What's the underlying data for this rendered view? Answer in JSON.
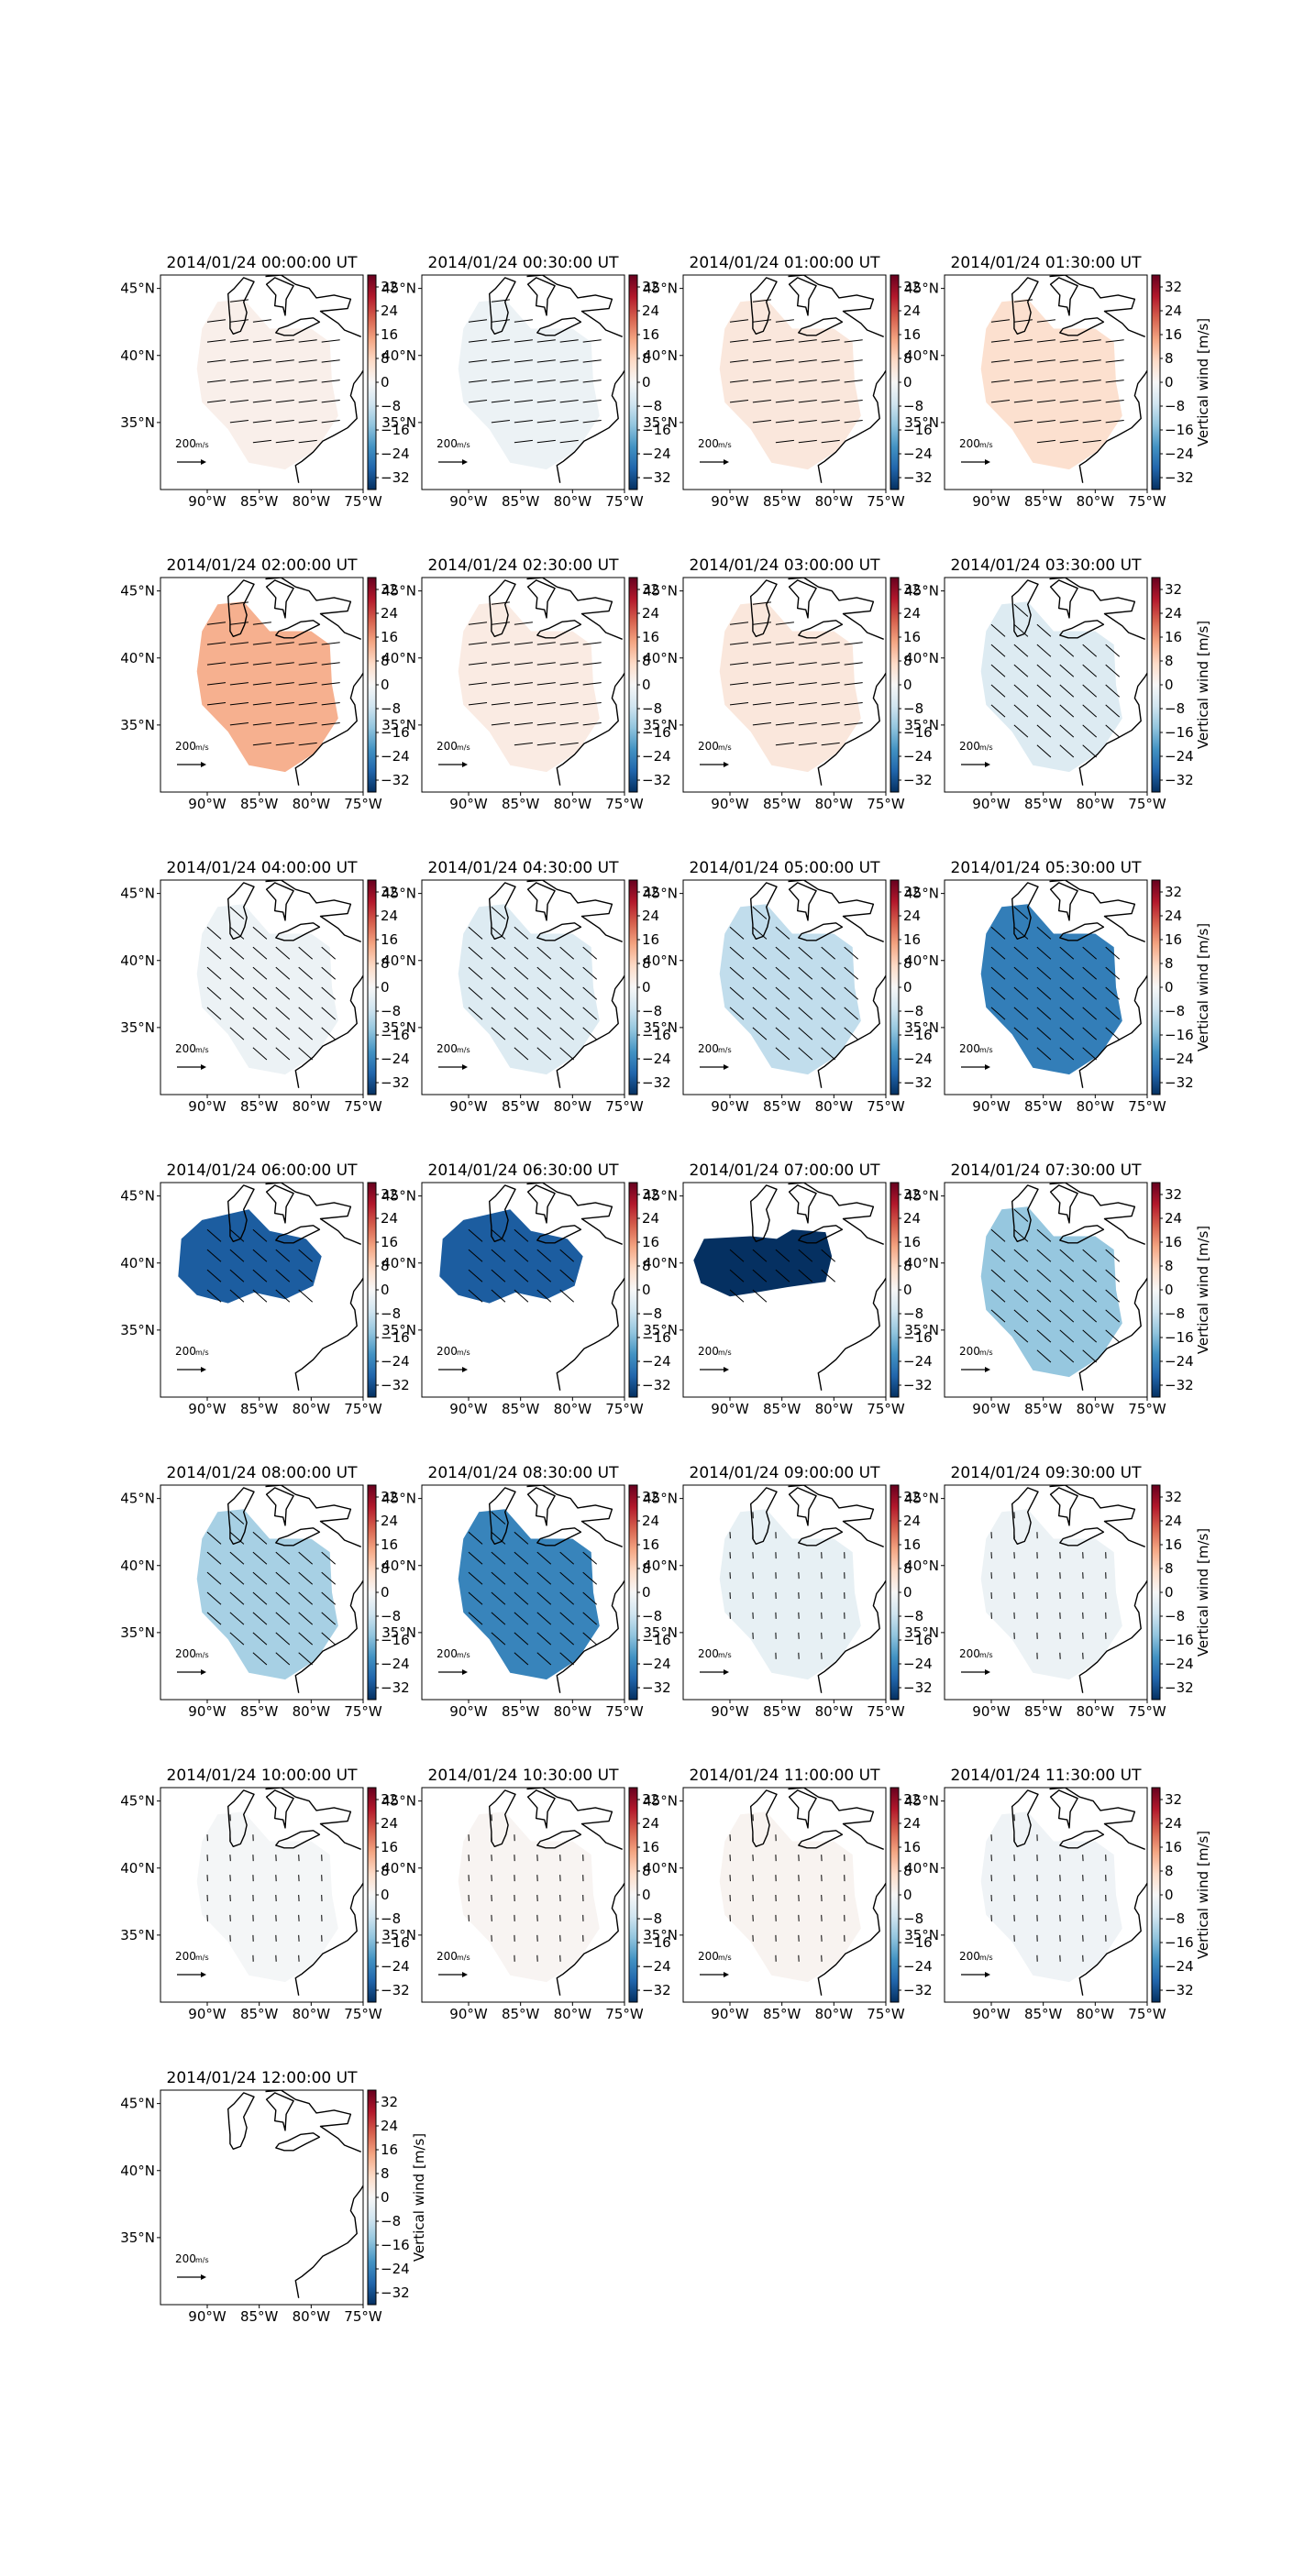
{
  "figure": {
    "colorbar": {
      "label": "Vertical wind [m/s]",
      "ticks": [
        "32",
        "24",
        "16",
        "8",
        "0",
        "−8",
        "−16",
        "−24",
        "−32"
      ],
      "vmin": -36,
      "vmax": 36,
      "colormap": "RdBu_r"
    },
    "axes": {
      "lat_ticks": [
        "45°N",
        "40°N",
        "35°N"
      ],
      "lon_ticks": [
        "90°W",
        "85°W",
        "80°W",
        "75°W"
      ],
      "lon_range": [
        -94.5,
        -75
      ],
      "lat_range": [
        30,
        46
      ]
    },
    "quiver_key": {
      "value": "200",
      "unit": "m/s"
    }
  },
  "chart_data": {
    "type": "heatmap",
    "variable": "Vertical wind",
    "units": "m/s",
    "panels": [
      {
        "title": "2014/01/24 00:00:00 UT",
        "w": 2,
        "region": "full",
        "vectors": "east"
      },
      {
        "title": "2014/01/24 00:30:00 UT",
        "w": -2,
        "region": "full",
        "vectors": "east"
      },
      {
        "title": "2014/01/24 01:00:00 UT",
        "w": 4,
        "region": "full",
        "vectors": "east"
      },
      {
        "title": "2014/01/24 01:30:00 UT",
        "w": 6,
        "region": "full",
        "vectors": "east"
      },
      {
        "title": "2014/01/24 02:00:00 UT",
        "w": 13,
        "region": "full",
        "vectors": "east"
      },
      {
        "title": "2014/01/24 02:30:00 UT",
        "w": 3,
        "region": "full",
        "vectors": "east"
      },
      {
        "title": "2014/01/24 03:00:00 UT",
        "w": 4,
        "region": "full",
        "vectors": "east"
      },
      {
        "title": "2014/01/24 03:30:00 UT",
        "w": -5,
        "region": "full",
        "vectors": "southeast"
      },
      {
        "title": "2014/01/24 04:00:00 UT",
        "w": -2,
        "region": "full",
        "vectors": "southeast"
      },
      {
        "title": "2014/01/24 04:30:00 UT",
        "w": -5,
        "region": "full",
        "vectors": "southeast"
      },
      {
        "title": "2014/01/24 05:00:00 UT",
        "w": -9,
        "region": "full",
        "vectors": "southeast"
      },
      {
        "title": "2014/01/24 05:30:00 UT",
        "w": -25,
        "region": "full",
        "vectors": "southeast"
      },
      {
        "title": "2014/01/24 06:00:00 UT",
        "w": -30,
        "region": "north",
        "vectors": "southeast"
      },
      {
        "title": "2014/01/24 06:30:00 UT",
        "w": -30,
        "region": "north",
        "vectors": "southeast"
      },
      {
        "title": "2014/01/24 07:00:00 UT",
        "w": -36,
        "region": "north-small",
        "vectors": "southeast"
      },
      {
        "title": "2014/01/24 07:30:00 UT",
        "w": -14,
        "region": "full",
        "vectors": "southeast"
      },
      {
        "title": "2014/01/24 08:00:00 UT",
        "w": -12,
        "region": "full",
        "vectors": "southeast"
      },
      {
        "title": "2014/01/24 08:30:00 UT",
        "w": -24,
        "region": "full",
        "vectors": "southeast"
      },
      {
        "title": "2014/01/24 09:00:00 UT",
        "w": -3,
        "region": "full",
        "vectors": "south"
      },
      {
        "title": "2014/01/24 09:30:00 UT",
        "w": -2,
        "region": "full",
        "vectors": "south"
      },
      {
        "title": "2014/01/24 10:00:00 UT",
        "w": -0.5,
        "region": "full",
        "vectors": "south"
      },
      {
        "title": "2014/01/24 10:30:00 UT",
        "w": 0.7,
        "region": "full",
        "vectors": "south"
      },
      {
        "title": "2014/01/24 11:00:00 UT",
        "w": 1,
        "region": "full",
        "vectors": "south"
      },
      {
        "title": "2014/01/24 11:30:00 UT",
        "w": -1.5,
        "region": "full",
        "vectors": "south"
      },
      {
        "title": "2014/01/24 12:00:00 UT",
        "w": 0,
        "region": "none",
        "vectors": "none"
      }
    ]
  }
}
